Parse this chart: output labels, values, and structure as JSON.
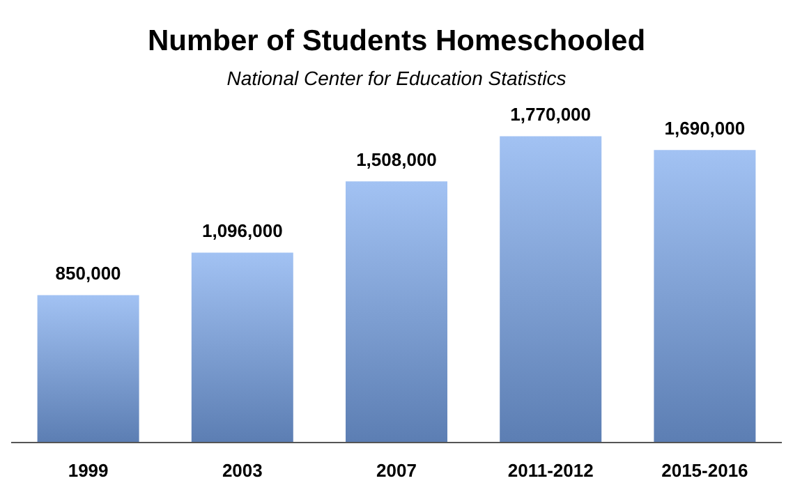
{
  "chart_data": {
    "type": "bar",
    "title": "Number of Students Homeschooled",
    "subtitle": "National Center for Education Statistics",
    "categories": [
      "1999",
      "2003",
      "2007",
      "2011-2012",
      "2015-2016"
    ],
    "values": [
      850000,
      1096000,
      1508000,
      1770000,
      1690000
    ],
    "value_labels": [
      "850,000",
      "1,096,000",
      "1,508,000",
      "1,770,000",
      "1,690,000"
    ],
    "color": "#7aa8ee"
  }
}
